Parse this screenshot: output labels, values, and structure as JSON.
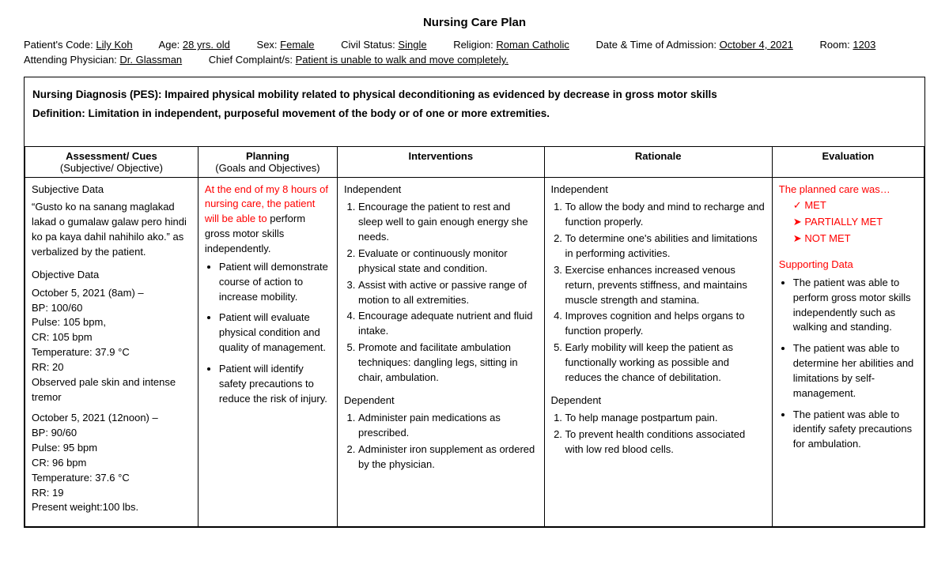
{
  "title": "Nursing Care Plan",
  "header": {
    "row1": [
      {
        "label": "Patient's Code:",
        "value": "Lily Koh"
      },
      {
        "label": "Age:",
        "value": "28 yrs. old"
      },
      {
        "label": "Sex:",
        "value": "Female"
      },
      {
        "label": "Civil Status:",
        "value": "Single"
      },
      {
        "label": "Religion:",
        "value": "Roman Catholic"
      },
      {
        "label": "Date & Time of Admission:",
        "value": "October 4, 2021"
      },
      {
        "label": "Room:",
        "value": "1203"
      }
    ],
    "row2": [
      {
        "label": "Attending Physician:",
        "value": "Dr. Glassman"
      },
      {
        "label": "Chief Complaint/s:",
        "value": "Patient is unable to walk and move completely."
      }
    ]
  },
  "diagnosis": {
    "pes": "Nursing Diagnosis (PES): Impaired physical mobility related to physical deconditioning as evidenced by decrease in gross motor skills",
    "definition": "Definition: Limitation in independent, purposeful movement of the body or of one or more extremities."
  },
  "columns": {
    "assessment": {
      "head": "Assessment/ Cues",
      "sub": "(Subjective/ Objective)"
    },
    "planning": {
      "head": "Planning",
      "sub": "(Goals and Objectives)"
    },
    "interventions": {
      "head": "Interventions",
      "sub": ""
    },
    "rationale": {
      "head": "Rationale",
      "sub": ""
    },
    "evaluation": {
      "head": "Evaluation",
      "sub": ""
    }
  },
  "assessment": {
    "subjective_label": "Subjective Data",
    "subjective_quote": "“Gusto ko na sanang maglakad lakad o gumalaw galaw pero hindi ko pa kaya dahil nahihilo ako.” as verbalized by the patient.",
    "objective_label": "Objective Data",
    "obs1_time": "October 5, 2021 (8am) –",
    "obs1": {
      "bp": "BP: 100/60",
      "pulse": "Pulse: 105 bpm,",
      "cr": "CR: 105 bpm",
      "temp": "Temperature: 37.9 °C",
      "rr": "RR: 20",
      "note": "Observed pale skin and intense tremor"
    },
    "obs2_time": "October 5, 2021 (12noon) –",
    "obs2": {
      "bp": "BP: 90/60",
      "pulse": "Pulse: 95 bpm",
      "cr": "CR: 96 bpm",
      "temp": "Temperature: 37.6 °C",
      "rr": "RR: 19",
      "weight": "Present weight:100 lbs."
    }
  },
  "planning": {
    "goal_red": "At the end of my 8 hours of nursing care, the patient will be able to",
    "goal_rest": " perform gross motor skills independently.",
    "bullets": [
      "Patient will demonstrate course of action to increase mobility.",
      "Patient will evaluate physical condition and quality of management.",
      "Patient will identify safety precautions to reduce the risk of injury."
    ]
  },
  "interventions": {
    "independent_label": "Independent",
    "independent": [
      "Encourage the patient to rest and sleep well to gain enough energy she needs.",
      "Evaluate or continuously monitor physical state and condition.",
      "Assist with active or passive range of motion to all extremities.",
      "Encourage adequate nutrient and fluid intake.",
      "Promote and facilitate ambulation techniques: dangling legs, sitting in chair, ambulation."
    ],
    "dependent_label": "Dependent",
    "dependent": [
      "Administer pain medications as prescribed.",
      "Administer iron supplement as ordered by the physician."
    ]
  },
  "rationale": {
    "independent_label": "Independent",
    "independent": [
      "To allow the body and mind to recharge and function properly.",
      "To determine one's abilities and limitations in performing activities.",
      "Exercise enhances increased venous return, prevents stiffness, and maintains muscle strength and stamina.",
      "Improves cognition and helps organs to function properly.",
      "Early mobility will keep the patient as functionally working as possible and reduces the chance of debilitation."
    ],
    "dependent_label": "Dependent",
    "dependent": [
      "To help manage postpartum pain.",
      "To prevent health conditions associated with low red blood cells."
    ]
  },
  "evaluation": {
    "lead": "The planned care was…",
    "opts": {
      "met": "MET",
      "partial": "PARTIALLY MET",
      "notmet": "NOT MET"
    },
    "support_label": "Supporting Data",
    "support": [
      "The patient was able to perform gross motor skills independently such as walking and standing.",
      "The patient was able to determine her abilities and limitations by self-management.",
      "The patient was able to identify safety precautions for ambulation."
    ]
  },
  "colors": {
    "red": "#ff0000",
    "border": "#000000",
    "bg": "#ffffff"
  }
}
